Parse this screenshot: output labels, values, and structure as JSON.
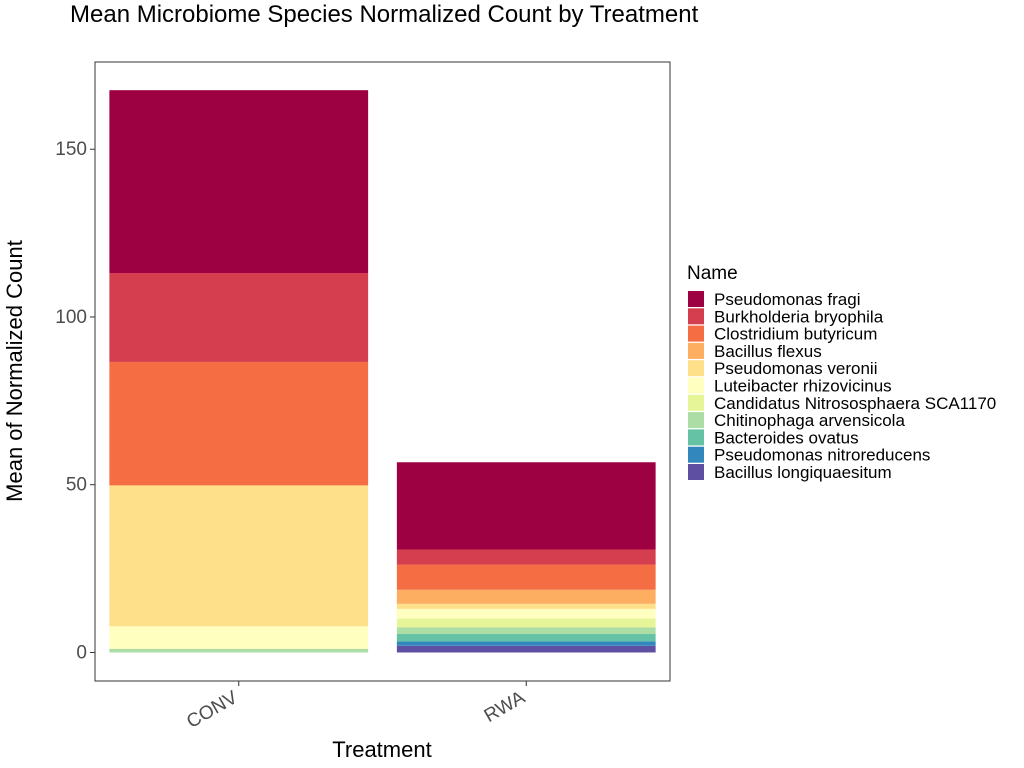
{
  "chart_data": {
    "type": "bar",
    "stacked": true,
    "title": "Mean Microbiome Species Normalized Count by Treatment",
    "xlabel": "Treatment",
    "ylabel": "Mean of Normalized Count",
    "ylim": [
      -8.5,
      176
    ],
    "yticks": [
      0,
      50,
      100,
      150
    ],
    "categories": [
      "CONV",
      "RWA"
    ],
    "grid": false,
    "legend": {
      "title": "Name",
      "position": "right"
    },
    "series": [
      {
        "name": "Pseudomonas fragi",
        "color": "#9E0142",
        "values": [
          54.5,
          26
        ]
      },
      {
        "name": "Burkholderia bryophila",
        "color": "#D53E4F",
        "values": [
          26.5,
          4.5
        ]
      },
      {
        "name": "Clostridium butyricum",
        "color": "#F46D43",
        "values": [
          36.8,
          7.5
        ]
      },
      {
        "name": "Bacillus flexus",
        "color": "#FDAE61",
        "values": [
          0,
          4.2
        ]
      },
      {
        "name": "Pseudomonas veronii",
        "color": "#FEE08B",
        "values": [
          42,
          1.5
        ]
      },
      {
        "name": "Luteibacter rhizovicinus",
        "color": "#FFFFBF",
        "values": [
          6.7,
          2.9
        ]
      },
      {
        "name": "Candidatus Nitrososphaera SCA1170",
        "color": "#E6F598",
        "values": [
          0,
          2.6
        ]
      },
      {
        "name": "Chitinophaga arvensicola",
        "color": "#ABDDA4",
        "values": [
          1.1,
          2.0
        ]
      },
      {
        "name": "Bacteroides ovatus",
        "color": "#66C2A5",
        "values": [
          0,
          2.2
        ]
      },
      {
        "name": "Pseudomonas nitroreducens",
        "color": "#3288BD",
        "values": [
          0,
          1.3
        ]
      },
      {
        "name": "Bacillus longiquaesitum",
        "color": "#5E4FA2",
        "values": [
          0,
          2.0
        ]
      }
    ]
  }
}
